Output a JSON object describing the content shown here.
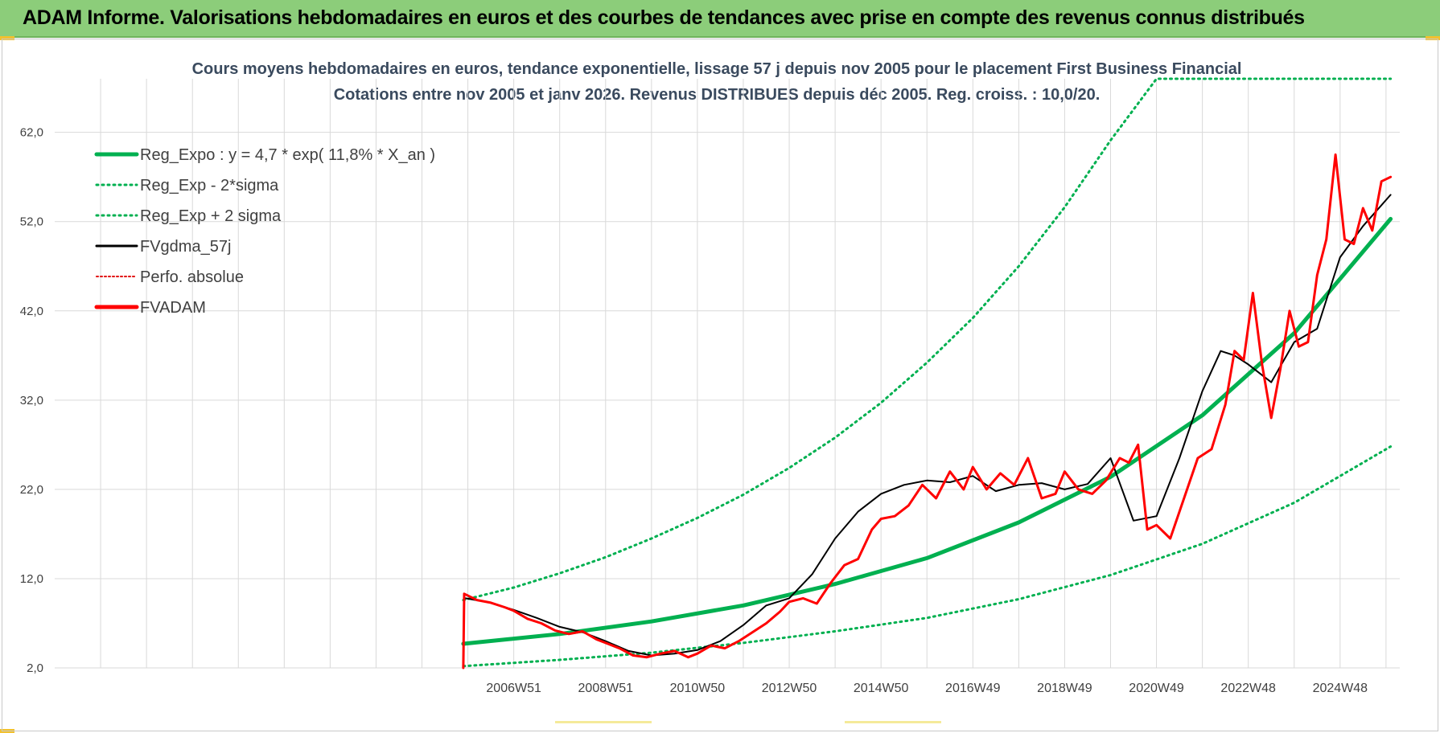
{
  "banner": {
    "title": "ADAM Informe. Valorisations hebdomadaires en euros et des courbes de tendances avec prise en compte des revenus connus distribués"
  },
  "chart_data": {
    "type": "line",
    "title": [
      "Cours moyens hebdomadaires en euros, tendance exponentielle, lissage 57 j depuis nov 2005  pour le placement First Business Financial",
      "Cotations entre nov 2005 et janv 2026. Revenus DISTRIBUES depuis déc 2005.  Reg. croiss. : 10,0/20."
    ],
    "xlabel": "",
    "ylabel": "",
    "ylim": [
      2,
      68
    ],
    "yticks": [
      2,
      12,
      22,
      32,
      42,
      52,
      62
    ],
    "ytick_labels": [
      "2,0",
      "12,0",
      "22,0",
      "32,0",
      "42,0",
      "52,0",
      "62,0"
    ],
    "x_range_years": [
      1997.0,
      2026.3
    ],
    "xticks": [
      2007.0,
      2009.0,
      2011.0,
      2013.0,
      2015.0,
      2017.0,
      2019.0,
      2021.0,
      2023.0,
      2025.0
    ],
    "xtick_labels": [
      "2006W51",
      "2008W51",
      "2010W50",
      "2012W50",
      "2014W50",
      "2016W49",
      "2018W49",
      "2020W49",
      "2022W48",
      "2024W48"
    ],
    "grid": true,
    "legend_position": "top-left",
    "legend": [
      {
        "label": "Reg_Expo : y = 4,7 * exp( 11,8% *  X_an )",
        "color": "#00b050",
        "style": "solid-thick"
      },
      {
        "label": "Reg_Exp - 2*sigma",
        "color": "#00b050",
        "style": "dotted"
      },
      {
        "label": "Reg_Exp + 2 sigma",
        "color": "#00b050",
        "style": "dotted"
      },
      {
        "label": "FVgdma_57j",
        "color": "#000000",
        "style": "solid"
      },
      {
        "label": "Perfo. absolue",
        "color": "#e00000",
        "style": "dotted"
      },
      {
        "label": "FVADAM",
        "color": "#ff0000",
        "style": "solid-thick"
      }
    ],
    "colors": {
      "trend": "#00b050",
      "smooth": "#000000",
      "price": "#ff0000",
      "grid": "#d9d9d9"
    },
    "series": [
      {
        "name": "Reg_Expo : y = 4,7 * exp( 11,8% *  X_an )",
        "x": [
          2005.9,
          2008,
          2010,
          2012,
          2014,
          2016,
          2018,
          2020,
          2022,
          2024,
          2026.1
        ],
        "y": [
          4.7,
          5.8,
          7.2,
          9.0,
          11.4,
          14.3,
          18.3,
          23.4,
          30.3,
          39.5,
          52.3
        ]
      },
      {
        "name": "Reg_Exp - 2*sigma",
        "x": [
          2005.9,
          2008,
          2010,
          2012,
          2014,
          2016,
          2018,
          2020,
          2022,
          2024,
          2026.1
        ],
        "y": [
          2.2,
          2.9,
          3.7,
          4.8,
          6.1,
          7.6,
          9.7,
          12.4,
          15.9,
          20.5,
          26.8
        ]
      },
      {
        "name": "Reg_Exp + 2 sigma",
        "x": [
          2005.9,
          2007,
          2008,
          2009,
          2010,
          2011,
          2012,
          2013,
          2014,
          2015,
          2016,
          2017,
          2018,
          2019,
          2020,
          2021,
          2022,
          2022.5,
          2023,
          2024,
          2025,
          2026.1
        ],
        "y": [
          9.6,
          11.0,
          12.6,
          14.4,
          16.5,
          18.8,
          21.4,
          24.4,
          27.8,
          31.7,
          36.2,
          41.2,
          47.0,
          53.6,
          61.1,
          68.0,
          68.0,
          68.0,
          68.0,
          68.0,
          68.0,
          68.0
        ]
      },
      {
        "name": "FVgdma_57j",
        "x": [
          2005.95,
          2006.5,
          2007,
          2007.5,
          2008,
          2008.5,
          2009,
          2009.5,
          2010,
          2010.5,
          2011,
          2011.5,
          2012,
          2012.5,
          2013,
          2013.5,
          2014,
          2014.5,
          2015,
          2015.5,
          2016,
          2016.5,
          2017,
          2017.5,
          2018,
          2018.5,
          2019,
          2019.5,
          2020,
          2020.5,
          2021,
          2021.5,
          2022,
          2022.4,
          2022.7,
          2023,
          2023.5,
          2024,
          2024.5,
          2025,
          2025.5,
          2026.1
        ],
        "y": [
          9.8,
          9.3,
          8.5,
          7.6,
          6.6,
          6.0,
          5.0,
          3.9,
          3.4,
          3.6,
          4.0,
          5.0,
          6.8,
          9.0,
          9.8,
          12.5,
          16.5,
          19.5,
          21.5,
          22.5,
          23.0,
          22.8,
          23.5,
          21.8,
          22.5,
          22.7,
          22.0,
          22.6,
          25.5,
          18.5,
          19.0,
          25.5,
          33.0,
          37.5,
          37.0,
          36.0,
          34.0,
          38.5,
          40.0,
          48.0,
          51.5,
          55.0
        ]
      },
      {
        "name": "FVADAM",
        "x": [
          2005.9,
          2005.92,
          2006.2,
          2006.5,
          2006.8,
          2007,
          2007.3,
          2007.6,
          2007.9,
          2008.2,
          2008.5,
          2008.8,
          2009,
          2009.3,
          2009.6,
          2009.9,
          2010.2,
          2010.5,
          2010.8,
          2011,
          2011.3,
          2011.6,
          2011.9,
          2012.2,
          2012.5,
          2012.8,
          2013,
          2013.3,
          2013.6,
          2013.9,
          2014.2,
          2014.5,
          2014.8,
          2015,
          2015.3,
          2015.6,
          2015.9,
          2016.2,
          2016.5,
          2016.8,
          2017,
          2017.3,
          2017.6,
          2017.9,
          2018.2,
          2018.5,
          2018.8,
          2019,
          2019.3,
          2019.6,
          2019.9,
          2020.2,
          2020.4,
          2020.6,
          2020.8,
          2021,
          2021.3,
          2021.6,
          2021.9,
          2022.2,
          2022.5,
          2022.7,
          2022.9,
          2023.1,
          2023.3,
          2023.5,
          2023.7,
          2023.9,
          2024.1,
          2024.3,
          2024.5,
          2024.7,
          2024.9,
          2025.1,
          2025.3,
          2025.5,
          2025.7,
          2025.9,
          2026.1
        ],
        "y": [
          2.0,
          10.3,
          9.6,
          9.3,
          8.8,
          8.4,
          7.5,
          7.0,
          6.2,
          5.8,
          6.1,
          5.2,
          4.8,
          4.2,
          3.4,
          3.2,
          3.6,
          3.9,
          3.2,
          3.6,
          4.5,
          4.2,
          5.0,
          6.0,
          7.0,
          8.3,
          9.4,
          9.8,
          9.2,
          11.5,
          13.5,
          14.2,
          17.5,
          18.7,
          19.0,
          20.2,
          22.5,
          21.0,
          24.0,
          22.0,
          24.5,
          22.0,
          23.8,
          22.5,
          25.5,
          21.0,
          21.5,
          24.0,
          22.0,
          21.5,
          23.0,
          25.5,
          25.0,
          27.0,
          17.5,
          18.0,
          16.5,
          21.0,
          25.5,
          26.5,
          31.5,
          37.5,
          36.5,
          44.0,
          36.0,
          30.0,
          35.5,
          42.0,
          38.0,
          38.5,
          46.0,
          50.0,
          59.5,
          50.0,
          49.5,
          53.5,
          51.0,
          56.5,
          57.0
        ]
      }
    ]
  }
}
